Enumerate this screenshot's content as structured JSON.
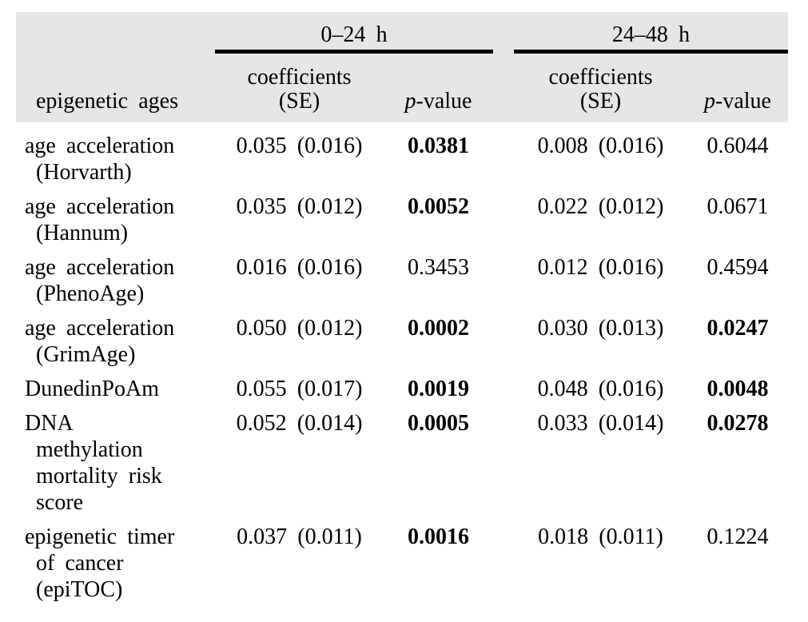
{
  "table": {
    "header_bg": "#e6e6e6",
    "rule_color": "#000000",
    "groups": [
      {
        "label": "0–24 h"
      },
      {
        "label": "24–48 h"
      }
    ],
    "col_headers": {
      "row_label": "epigenetic ages",
      "coef_se": "coefficients\n(SE)",
      "p_italic": "p",
      "p_rest": "-value"
    },
    "rows": [
      {
        "label": "age acceleration\n(Horvarth)",
        "g1": {
          "coef_se": "0.035 (0.016)",
          "p": "0.0381",
          "bold": true
        },
        "g2": {
          "coef_se": "0.008 (0.016)",
          "p": "0.6044",
          "bold": false
        }
      },
      {
        "label": "age acceleration\n(Hannum)",
        "g1": {
          "coef_se": "0.035 (0.012)",
          "p": "0.0052",
          "bold": true
        },
        "g2": {
          "coef_se": "0.022 (0.012)",
          "p": "0.0671",
          "bold": false
        }
      },
      {
        "label": "age acceleration\n(PhenoAge)",
        "g1": {
          "coef_se": "0.016 (0.016)",
          "p": "0.3453",
          "bold": false
        },
        "g2": {
          "coef_se": "0.012 (0.016)",
          "p": "0.4594",
          "bold": false
        }
      },
      {
        "label": "age acceleration\n(GrimAge)",
        "g1": {
          "coef_se": "0.050 (0.012)",
          "p": "0.0002",
          "bold": true
        },
        "g2": {
          "coef_se": "0.030 (0.013)",
          "p": "0.0247",
          "bold": true
        }
      },
      {
        "label": "DunedinPoAm",
        "g1": {
          "coef_se": "0.055 (0.017)",
          "p": "0.0019",
          "bold": true
        },
        "g2": {
          "coef_se": "0.048 (0.016)",
          "p": "0.0048",
          "bold": true
        }
      },
      {
        "label": "DNA\nmethylation\nmortality risk\nscore",
        "g1": {
          "coef_se": "0.052 (0.014)",
          "p": "0.0005",
          "bold": true
        },
        "g2": {
          "coef_se": "0.033 (0.014)",
          "p": "0.0278",
          "bold": true
        }
      },
      {
        "label": "epigenetic timer\nof cancer\n(epiTOC)",
        "g1": {
          "coef_se": "0.037 (0.011)",
          "p": "0.0016",
          "bold": true
        },
        "g2": {
          "coef_se": "0.018 (0.011)",
          "p": "0.1224",
          "bold": false
        }
      }
    ]
  }
}
